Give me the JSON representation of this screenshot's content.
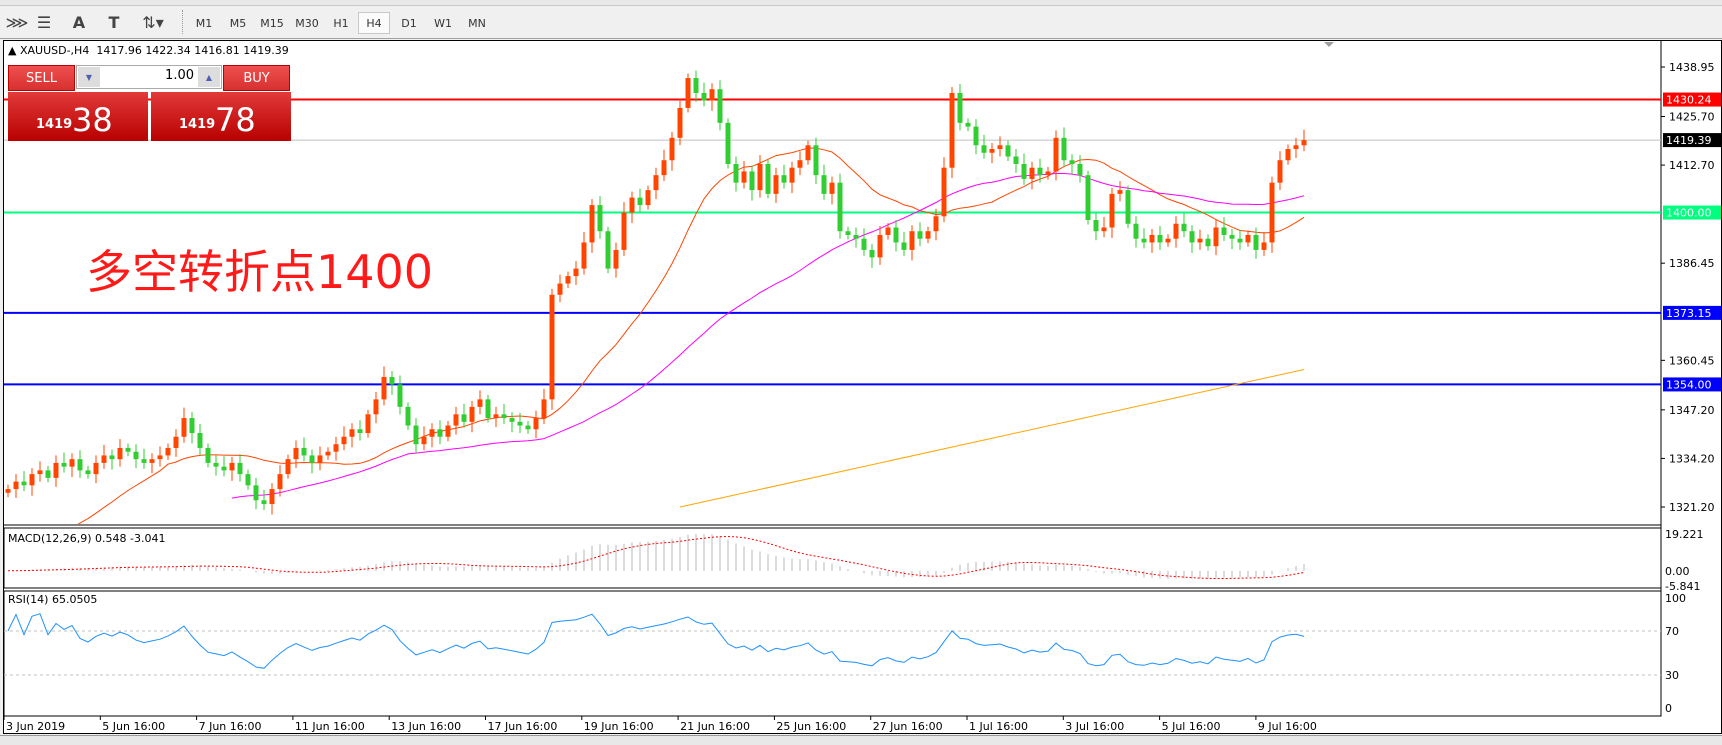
{
  "toolbar": {
    "icons": [
      "elliott-wave-icon",
      "fibonacci-fan-icon",
      "text-icon",
      "text-label-icon",
      "arrows-icon"
    ],
    "timeframes": [
      "M1",
      "M5",
      "M15",
      "M30",
      "H1",
      "H4",
      "D1",
      "W1",
      "MN"
    ],
    "active_timeframe": "H4"
  },
  "header": {
    "symbol": "XAUUSD-,H4",
    "ohlc": "1417.96 1422.34 1416.81 1419.39"
  },
  "trade_panel": {
    "sell_label": "SELL",
    "buy_label": "BUY",
    "lot": "1.00",
    "sell_price_small": "1419",
    "sell_price_big": "38",
    "buy_price_small": "1419",
    "buy_price_big": "78"
  },
  "annotation": "多空转折点1400",
  "chart_data": {
    "type": "candlestick",
    "price_axis_ticks": [
      "1438.95",
      "1425.70",
      "1412.70",
      "1386.45",
      "1360.45",
      "1347.20",
      "1334.20",
      "1321.20"
    ],
    "price_range": [
      1321.2,
      1438.95
    ],
    "levels": [
      {
        "value": 1430.24,
        "label": "1430.24",
        "color": "#ff0000"
      },
      {
        "value": 1419.39,
        "label": "1419.39",
        "color": "#000000",
        "line_color": "#c0c0c0"
      },
      {
        "value": 1400.0,
        "label": "1400.00",
        "color": "#00ff7f"
      },
      {
        "value": 1373.15,
        "label": "1373.15",
        "color": "#0000ff"
      },
      {
        "value": 1354.0,
        "label": "1354.00",
        "color": "#0000ff"
      }
    ],
    "up_color": "#ff4500",
    "down_color": "#32cd32",
    "closes": [
      1326,
      1328,
      1327,
      1330,
      1331,
      1329,
      1333,
      1332,
      1334,
      1331,
      1330,
      1333,
      1335,
      1334,
      1337,
      1336,
      1334,
      1333,
      1334,
      1335,
      1337,
      1340,
      1345,
      1341,
      1337,
      1333,
      1332,
      1331,
      1333,
      1330,
      1327,
      1323,
      1322,
      1326,
      1330,
      1334,
      1337,
      1335,
      1333,
      1335,
      1336,
      1338,
      1340,
      1342,
      1341,
      1346,
      1350,
      1356,
      1354,
      1348,
      1343,
      1338,
      1340,
      1342,
      1340,
      1343,
      1346,
      1344,
      1348,
      1350,
      1345,
      1346,
      1345,
      1344,
      1343,
      1342,
      1345,
      1350,
      1378,
      1381,
      1383,
      1385,
      1392,
      1402,
      1395,
      1385,
      1390,
      1400,
      1404,
      1402,
      1406,
      1410,
      1414,
      1420,
      1428,
      1436,
      1432,
      1430,
      1433,
      1424,
      1413,
      1408,
      1411,
      1406,
      1413,
      1405,
      1410,
      1408,
      1412,
      1414,
      1418,
      1410,
      1405,
      1408,
      1395,
      1394,
      1393,
      1390,
      1388,
      1394,
      1396,
      1392,
      1390,
      1395,
      1393,
      1395,
      1399,
      1412,
      1432,
      1424,
      1423,
      1418,
      1416,
      1417,
      1418,
      1415,
      1413,
      1409,
      1412,
      1410,
      1411,
      1420,
      1414,
      1413,
      1410,
      1398,
      1395,
      1396,
      1405,
      1406,
      1397,
      1393,
      1392,
      1394,
      1392,
      1393,
      1397,
      1395,
      1392,
      1393,
      1391,
      1396,
      1394,
      1393,
      1392,
      1394,
      1390,
      1392,
      1408,
      1414,
      1417,
      1418,
      1419.39
    ],
    "ma_colors": {
      "fast": "#ff4500",
      "slow": "#ff00ff",
      "long": "#ffa500"
    },
    "ma_long_line": {
      "from": [
        84,
        1321.2
      ],
      "to": [
        162,
        1358
      ]
    },
    "x_labels": [
      "3 Jun 2019",
      "5 Jun 16:00",
      "7 Jun 16:00",
      "11 Jun 16:00",
      "13 Jun 16:00",
      "17 Jun 16:00",
      "19 Jun 16:00",
      "21 Jun 16:00",
      "25 Jun 16:00",
      "27 Jun 16:00",
      "1 Jul 16:00",
      "3 Jul 16:00",
      "5 Jul 16:00",
      "9 Jul 16:00"
    ]
  },
  "macd": {
    "label": "MACD(12,26,9) 0.548 -3.041",
    "ticks": [
      "19.221",
      "0.00",
      "-5.841"
    ],
    "range": [
      -5.841,
      19.221
    ]
  },
  "rsi": {
    "label": "RSI(14) 65.0505",
    "ticks": [
      "100",
      "70",
      "30",
      "0"
    ],
    "value": 65.0505
  }
}
